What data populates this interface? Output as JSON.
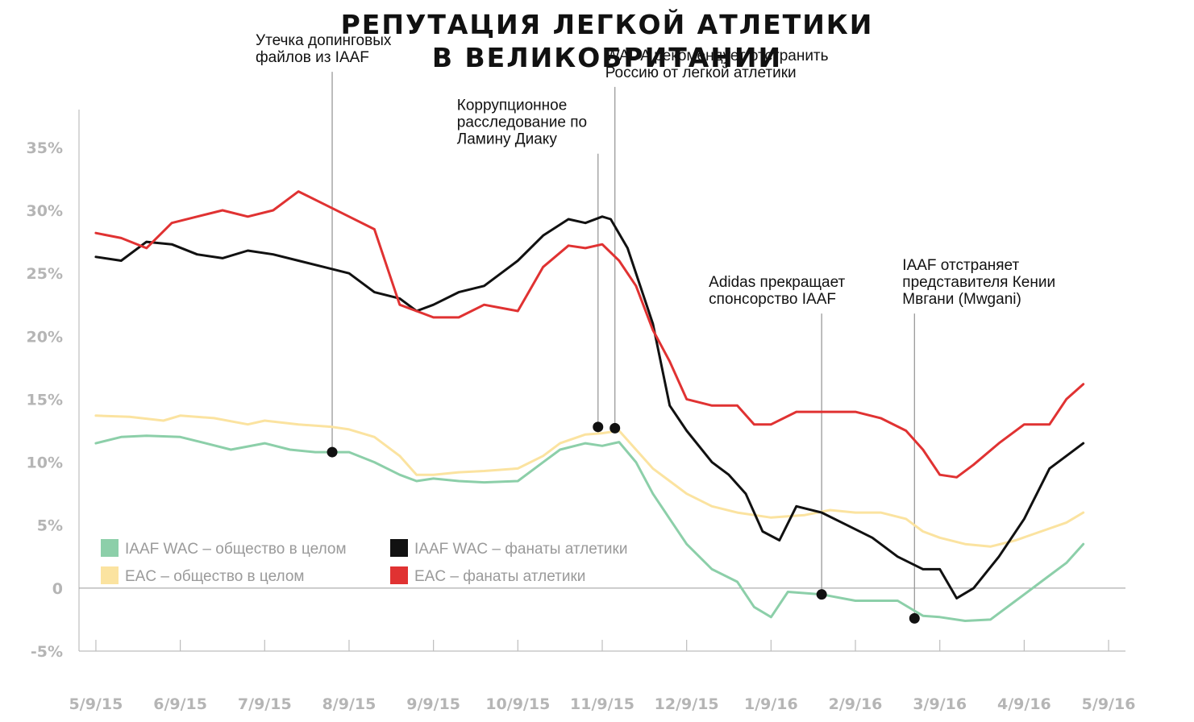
{
  "chart_data": {
    "type": "line",
    "title_lines": [
      "РЕПУТАЦИЯ ЛЕГКОЙ АТЛЕТИКИ",
      "В ВЕЛИКОБРИТАНИИ"
    ],
    "xlabel": "",
    "ylabel": "",
    "x_ticks": [
      "5/9/15",
      "6/9/15",
      "7/9/15",
      "8/9/15",
      "9/9/15",
      "10/9/15",
      "11/9/15",
      "12/9/15",
      "1/9/16",
      "2/9/16",
      "3/9/16",
      "4/9/16",
      "5/9/16"
    ],
    "y_ticks": [
      {
        "value": 35,
        "label": "35%"
      },
      {
        "value": 30,
        "label": "30%"
      },
      {
        "value": 25,
        "label": "25%"
      },
      {
        "value": 20,
        "label": "20%"
      },
      {
        "value": 15,
        "label": "15%"
      },
      {
        "value": 10,
        "label": "10%"
      },
      {
        "value": 5,
        "label": "5%"
      },
      {
        "value": 0,
        "label": "0"
      },
      {
        "value": -5,
        "label": "-5%"
      }
    ],
    "xlim": [
      -0.2,
      12.2
    ],
    "ylim": [
      -5,
      38
    ],
    "legend": {
      "placement": "bottom-left",
      "entries": [
        {
          "series": 0,
          "label": "IAAF WAC – общество в целом"
        },
        {
          "series": 2,
          "label": "IAAF WAC – фанаты атлетики"
        },
        {
          "series": 1,
          "label": "EAC – общество в целом"
        },
        {
          "series": 3,
          "label": "EAC – фанаты атлетики"
        }
      ]
    },
    "series": [
      {
        "name": "IAAF WAC – общество в целом",
        "color": "#8ccfa9",
        "x": [
          0,
          0.3,
          0.6,
          1,
          1.3,
          1.6,
          2,
          2.3,
          2.6,
          3,
          3.3,
          3.6,
          3.8,
          4,
          4.3,
          4.6,
          5,
          5.3,
          5.5,
          5.8,
          6,
          6.2,
          6.4,
          6.6,
          6.8,
          7,
          7.3,
          7.6,
          7.8,
          8,
          8.2,
          8.6,
          9,
          9.2,
          9.5,
          9.8,
          10,
          10.3,
          10.6,
          10.9,
          11.2,
          11.5,
          11.7
        ],
        "y": [
          11.5,
          12,
          12.1,
          12,
          11.5,
          11,
          11.5,
          11,
          10.8,
          10.8,
          10,
          9,
          8.5,
          8.7,
          8.5,
          8.4,
          8.5,
          10,
          11,
          11.5,
          11.3,
          11.6,
          10,
          7.5,
          5.5,
          3.5,
          1.5,
          0.5,
          -1.5,
          -2.3,
          -0.3,
          -0.5,
          -1,
          -1,
          -1,
          -2.2,
          -2.3,
          -2.6,
          -2.5,
          -1,
          0.5,
          2,
          3.5
        ]
      },
      {
        "name": "EAC – общество в целом",
        "color": "#fbe3a0",
        "x": [
          0,
          0.4,
          0.8,
          1,
          1.4,
          1.8,
          2,
          2.4,
          2.8,
          3,
          3.3,
          3.6,
          3.8,
          4,
          4.3,
          4.6,
          5,
          5.3,
          5.5,
          5.8,
          6,
          6.2,
          6.4,
          6.6,
          6.8,
          7,
          7.3,
          7.6,
          7.8,
          8,
          8.4,
          8.7,
          9,
          9.3,
          9.6,
          9.8,
          10,
          10.3,
          10.6,
          10.9,
          11.2,
          11.5,
          11.7
        ],
        "y": [
          13.7,
          13.6,
          13.3,
          13.7,
          13.5,
          13,
          13.3,
          13,
          12.8,
          12.6,
          12,
          10.5,
          9,
          9,
          9.2,
          9.3,
          9.5,
          10.5,
          11.5,
          12.2,
          12.3,
          12.5,
          11,
          9.5,
          8.5,
          7.5,
          6.5,
          6,
          5.8,
          5.6,
          5.8,
          6.2,
          6,
          6,
          5.5,
          4.5,
          4,
          3.5,
          3.3,
          3.8,
          4.5,
          5.2,
          6
        ]
      },
      {
        "name": "IAAF WAC – фанаты атлетики",
        "color": "#111111",
        "x": [
          0,
          0.3,
          0.6,
          0.9,
          1.2,
          1.5,
          1.8,
          2.1,
          2.4,
          2.7,
          3,
          3.3,
          3.6,
          3.8,
          4,
          4.3,
          4.6,
          5,
          5.3,
          5.6,
          5.8,
          6,
          6.1,
          6.3,
          6.6,
          6.8,
          7,
          7.3,
          7.5,
          7.7,
          7.9,
          8.1,
          8.3,
          8.6,
          8.9,
          9.2,
          9.5,
          9.8,
          10,
          10.2,
          10.4,
          10.7,
          11,
          11.3,
          11.5,
          11.7
        ],
        "y": [
          26.3,
          26,
          27.5,
          27.3,
          26.5,
          26.2,
          26.8,
          26.5,
          26,
          25.5,
          25,
          23.5,
          23,
          22,
          22.5,
          23.5,
          24,
          26,
          28,
          29.3,
          29,
          29.5,
          29.3,
          27,
          21,
          14.5,
          12.5,
          10,
          9,
          7.5,
          4.5,
          3.8,
          6.5,
          6,
          5,
          4,
          2.5,
          1.5,
          1.5,
          -0.8,
          0,
          2.5,
          5.5,
          9.5,
          10.5,
          11.5
        ]
      },
      {
        "name": "EAC – фанаты атлетики",
        "color": "#e03232",
        "x": [
          0,
          0.3,
          0.6,
          0.9,
          1.2,
          1.5,
          1.8,
          2.1,
          2.4,
          2.7,
          3,
          3.3,
          3.6,
          3.8,
          4,
          4.3,
          4.6,
          5,
          5.3,
          5.6,
          5.8,
          6,
          6.2,
          6.4,
          6.6,
          6.8,
          7,
          7.3,
          7.6,
          7.8,
          8,
          8.3,
          8.6,
          9,
          9.3,
          9.6,
          9.8,
          10,
          10.2,
          10.4,
          10.7,
          11,
          11.3,
          11.5,
          11.7
        ],
        "y": [
          28.2,
          27.8,
          27,
          29,
          29.5,
          30,
          29.5,
          30,
          31.5,
          30.5,
          29.5,
          28.5,
          22.5,
          22,
          21.5,
          21.5,
          22.5,
          22,
          25.5,
          27.2,
          27,
          27.3,
          26,
          24,
          20.5,
          18,
          15,
          14.5,
          14.5,
          13,
          13,
          14,
          14,
          14,
          13.5,
          12.5,
          11,
          9,
          8.8,
          9.8,
          11.5,
          13,
          13,
          15,
          16.2
        ]
      }
    ],
    "annotations": [
      {
        "lines": [
          "Утечка допинговых",
          "файлов из IAAF"
        ],
        "x": 2.8,
        "y_top": 41,
        "marker_y": 10.8,
        "marker_series": 0
      },
      {
        "lines": [
          "Коррупционное",
          "расследование по",
          "Ламину Диаку"
        ],
        "x": 5.95,
        "y_top": 34.5,
        "marker_y": 12.8,
        "marker_series": 1
      },
      {
        "lines": [
          "WADA рекомендует отстранить",
          "Россию от легкой атлетики"
        ],
        "x": 6.15,
        "y_top": 39.8,
        "marker_y": 12.7,
        "marker_series": 1
      },
      {
        "lines": [
          "Adidas прекращает",
          "спонсорство IAAF"
        ],
        "x": 8.6,
        "y_top": 21.8,
        "marker_y": -0.5,
        "marker_series": 0
      },
      {
        "lines": [
          "IAAF отстраняет",
          "представителя Кении",
          "Мвгани (Mwgani)"
        ],
        "x": 9.7,
        "y_top": 21.8,
        "marker_y": -2.4,
        "marker_series": 0
      }
    ]
  }
}
